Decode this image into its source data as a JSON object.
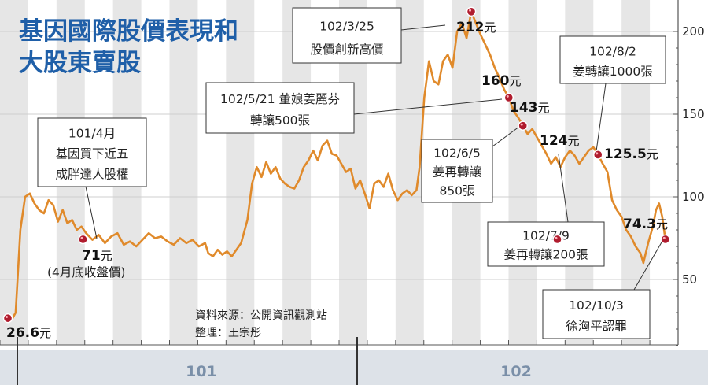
{
  "chart_data": {
    "type": "line",
    "title": [
      "基因國際股價表現和",
      "大股東賣股"
    ],
    "yticks": [
      50,
      100,
      150,
      200
    ],
    "ylim": [
      0,
      210
    ],
    "xtick_labels": [
      "101",
      "102"
    ],
    "line_color": "#e08a2b",
    "x": [
      "2011-11",
      "2011-12",
      "2012-01",
      "2012-02",
      "2012-03",
      "2012-04",
      "2012-05",
      "2012-06",
      "2012-07",
      "2012-08",
      "2012-09",
      "2012-10",
      "2012-11",
      "2012-12",
      "2013-01",
      "2013-02",
      "2013-03",
      "2013-04",
      "2013-05",
      "2013-06",
      "2013-07",
      "2013-08",
      "2013-09",
      "2013-10"
    ],
    "price": [
      [
        0,
        26.6
      ],
      [
        3,
        26.6
      ],
      [
        5,
        30
      ],
      [
        8,
        80
      ],
      [
        11,
        100
      ],
      [
        14,
        102
      ],
      [
        17,
        96
      ],
      [
        20,
        92
      ],
      [
        23,
        90
      ],
      [
        26,
        98
      ],
      [
        29,
        95
      ],
      [
        32,
        85
      ],
      [
        35,
        92
      ],
      [
        38,
        84
      ],
      [
        41,
        86
      ],
      [
        44,
        80
      ],
      [
        47,
        82
      ],
      [
        50,
        78
      ],
      [
        54,
        74
      ],
      [
        58,
        77
      ],
      [
        62,
        72
      ],
      [
        66,
        76
      ],
      [
        70,
        78
      ],
      [
        74,
        71
      ],
      [
        78,
        73
      ],
      [
        82,
        70
      ],
      [
        86,
        74
      ],
      [
        90,
        78
      ],
      [
        94,
        75
      ],
      [
        98,
        76
      ],
      [
        102,
        73
      ],
      [
        106,
        71
      ],
      [
        110,
        75
      ],
      [
        114,
        72
      ],
      [
        118,
        74
      ],
      [
        122,
        70
      ],
      [
        126,
        72
      ],
      [
        128,
        66
      ],
      [
        131,
        64
      ],
      [
        134,
        68
      ],
      [
        137,
        65
      ],
      [
        140,
        67
      ],
      [
        143,
        64
      ],
      [
        146,
        68
      ],
      [
        149,
        72
      ],
      [
        153,
        86
      ],
      [
        156,
        108
      ],
      [
        159,
        118
      ],
      [
        162,
        112
      ],
      [
        165,
        121
      ],
      [
        168,
        114
      ],
      [
        171,
        118
      ],
      [
        174,
        111
      ],
      [
        177,
        108
      ],
      [
        180,
        106
      ],
      [
        183,
        105
      ],
      [
        186,
        110
      ],
      [
        189,
        118
      ],
      [
        192,
        122
      ],
      [
        195,
        128
      ],
      [
        198,
        122
      ],
      [
        201,
        131
      ],
      [
        204,
        134
      ],
      [
        207,
        126
      ],
      [
        210,
        125
      ],
      [
        213,
        120
      ],
      [
        216,
        115
      ],
      [
        219,
        117
      ],
      [
        222,
        105
      ],
      [
        225,
        110
      ],
      [
        228,
        102
      ],
      [
        231,
        93
      ],
      [
        234,
        108
      ],
      [
        237,
        110
      ],
      [
        240,
        106
      ],
      [
        243,
        114
      ],
      [
        246,
        104
      ],
      [
        249,
        98
      ],
      [
        252,
        102
      ],
      [
        255,
        104
      ],
      [
        258,
        101
      ],
      [
        261,
        104
      ],
      [
        263,
        118
      ],
      [
        266,
        160
      ],
      [
        269,
        182
      ],
      [
        272,
        170
      ],
      [
        275,
        168
      ],
      [
        278,
        182
      ],
      [
        281,
        186
      ],
      [
        284,
        178
      ],
      [
        287,
        200
      ],
      [
        290,
        205
      ],
      [
        293,
        196
      ],
      [
        296,
        212
      ],
      [
        299,
        205
      ],
      [
        302,
        198
      ],
      [
        305,
        192
      ],
      [
        308,
        186
      ],
      [
        311,
        178
      ],
      [
        314,
        172
      ],
      [
        317,
        165
      ],
      [
        320,
        160
      ],
      [
        323,
        152
      ],
      [
        326,
        148
      ],
      [
        329,
        143
      ],
      [
        332,
        138
      ],
      [
        335,
        141
      ],
      [
        338,
        136
      ],
      [
        341,
        131
      ],
      [
        344,
        126
      ],
      [
        347,
        120
      ],
      [
        350,
        124
      ],
      [
        353,
        118
      ],
      [
        356,
        124
      ],
      [
        359,
        128
      ],
      [
        362,
        125
      ],
      [
        365,
        120
      ],
      [
        368,
        124
      ],
      [
        371,
        128
      ],
      [
        374,
        130
      ],
      [
        377,
        125.5
      ],
      [
        380,
        120
      ],
      [
        383,
        115
      ],
      [
        386,
        98
      ],
      [
        389,
        92
      ],
      [
        392,
        88
      ],
      [
        395,
        80
      ],
      [
        398,
        76
      ],
      [
        401,
        70
      ],
      [
        404,
        66
      ],
      [
        406,
        60
      ],
      [
        409,
        72
      ],
      [
        412,
        82
      ],
      [
        414,
        92
      ],
      [
        416,
        96
      ],
      [
        418,
        88
      ],
      [
        420,
        74.3
      ]
    ],
    "markers": [
      {
        "t": 0,
        "value": "26.6",
        "unit": "元"
      },
      {
        "t": 48,
        "value": "71",
        "unit": "元",
        "sub": "(4月底收盤價)"
      },
      {
        "t": 296,
        "value": "212",
        "unit": "元"
      },
      {
        "t": 320,
        "value": "160",
        "unit": "元"
      },
      {
        "t": 329,
        "value": "143",
        "unit": "元"
      },
      {
        "t": 351,
        "value": "124",
        "unit": "元"
      },
      {
        "t": 377,
        "value": "125.5",
        "unit": "元"
      },
      {
        "t": 420,
        "value": "74.3",
        "unit": "元"
      }
    ],
    "annotations": [
      {
        "lines": [
          "101/4月",
          "基因買下近五",
          "成胖達人股權"
        ]
      },
      {
        "lines": [
          "102/3/25",
          "股價創新高價"
        ]
      },
      {
        "lines": [
          "102/5/21  董娘姜麗芬",
          "轉讓500張"
        ]
      },
      {
        "lines": [
          "102/6/5",
          "姜再轉讓",
          "850張"
        ]
      },
      {
        "lines": [
          "102/7/9",
          "姜再轉讓200張"
        ]
      },
      {
        "lines": [
          "102/8/2",
          "姜轉讓1000張"
        ]
      },
      {
        "lines": [
          "102/10/3",
          "徐洶平認罪"
        ]
      }
    ],
    "source": [
      "資料來源：公開資訊觀測站",
      "整理：王宗彤"
    ]
  }
}
